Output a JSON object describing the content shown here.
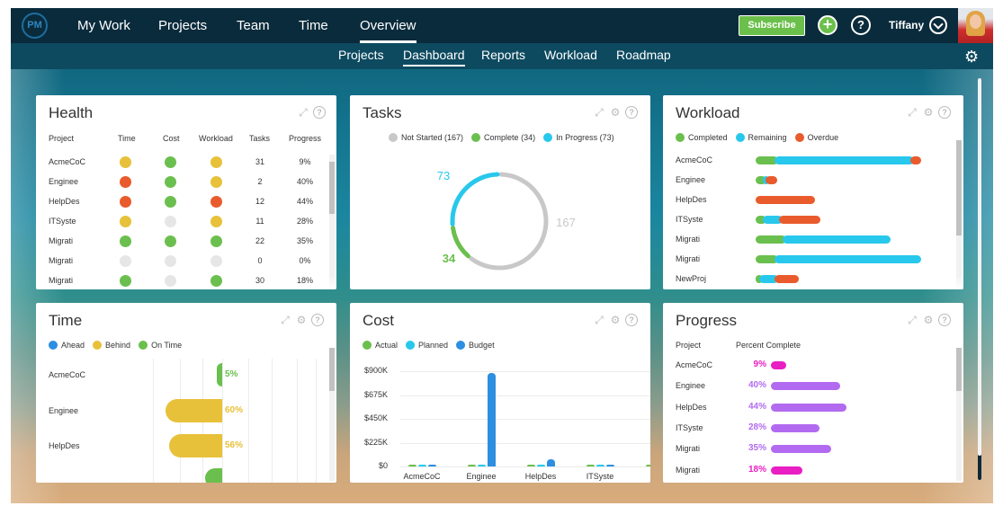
{
  "topnav": {
    "logo": "PM",
    "items": [
      "My Work",
      "Projects",
      "Team",
      "Time",
      "Overview"
    ],
    "active": "Overview",
    "subscribe": "Subscribe",
    "user": "Tiffany"
  },
  "subnav": {
    "items": [
      "Projects",
      "Dashboard",
      "Reports",
      "Workload",
      "Roadmap"
    ],
    "active": "Dashboard"
  },
  "colors": {
    "green": "#6bbf4e",
    "yellow": "#e8c13a",
    "red": "#e95b2c",
    "gray": "#e6e6e6",
    "blue": "#2d8fe0",
    "cyan": "#28c8ec",
    "purple": "#b26bf0",
    "magenta": "#e91ec3"
  },
  "health": {
    "title": "Health",
    "columns": [
      "Project",
      "Time",
      "Cost",
      "Workload",
      "Tasks",
      "Progress"
    ],
    "rows": [
      {
        "project": "AcmeCoC",
        "time": "yellow",
        "cost": "green",
        "workload": "yellow",
        "tasks": "31",
        "progress": "9%"
      },
      {
        "project": "Enginee",
        "time": "red",
        "cost": "green",
        "workload": "yellow",
        "tasks": "2",
        "progress": "40%"
      },
      {
        "project": "HelpDes",
        "time": "red",
        "cost": "green",
        "workload": "red",
        "tasks": "12",
        "progress": "44%"
      },
      {
        "project": "ITSyste",
        "time": "yellow",
        "cost": "gray",
        "workload": "yellow",
        "tasks": "11",
        "progress": "28%"
      },
      {
        "project": "Migrati",
        "time": "green",
        "cost": "green",
        "workload": "green",
        "tasks": "22",
        "progress": "35%"
      },
      {
        "project": "Migrati",
        "time": "gray",
        "cost": "gray",
        "workload": "gray",
        "tasks": "0",
        "progress": "0%"
      },
      {
        "project": "Migrati",
        "time": "green",
        "cost": "gray",
        "workload": "green",
        "tasks": "30",
        "progress": "18%"
      }
    ]
  },
  "tasks": {
    "title": "Tasks",
    "legend": [
      {
        "label": "Not Started (167)",
        "color": "#c8c8c8"
      },
      {
        "label": "Complete (34)",
        "color": "#6bbf4e"
      },
      {
        "label": "In Progress (73)",
        "color": "#28c8ec"
      }
    ],
    "values": {
      "not_started": 167,
      "complete": 34,
      "in_progress": 73
    },
    "labels": {
      "in_progress": "73",
      "not_started": "167",
      "complete": "34"
    }
  },
  "workload": {
    "title": "Workload",
    "legend": [
      {
        "label": "Completed",
        "color": "#6bbf4e"
      },
      {
        "label": "Remaining",
        "color": "#28c8ec"
      },
      {
        "label": "Overdue",
        "color": "#e95b2c"
      }
    ],
    "rows": [
      {
        "project": "AcmeCoC",
        "completed": 20,
        "remaining": 146,
        "overdue": 8
      },
      {
        "project": "Enginee",
        "completed": 8,
        "remaining": 3,
        "overdue": 8
      },
      {
        "project": "HelpDes",
        "completed": 0,
        "remaining": 0,
        "overdue": 60
      },
      {
        "project": "ITSyste",
        "completed": 8,
        "remaining": 17,
        "overdue": 41
      },
      {
        "project": "Migrati",
        "completed": 29,
        "remaining": 112,
        "overdue": 0
      },
      {
        "project": "Migrati",
        "completed": 20,
        "remaining": 154,
        "overdue": 0
      },
      {
        "project": "NewProj",
        "completed": 4,
        "remaining": 16,
        "overdue": 23
      }
    ]
  },
  "time": {
    "title": "Time",
    "legend": [
      {
        "label": "Ahead",
        "color": "#2d8fe0"
      },
      {
        "label": "Behind",
        "color": "#e8c13a"
      },
      {
        "label": "On Time",
        "color": "#6bbf4e"
      }
    ],
    "rows": [
      {
        "project": "AcmeCoC",
        "label": "5%",
        "status": "ontime",
        "value": 5
      },
      {
        "project": "Enginee",
        "label": "60%",
        "status": "behind",
        "value": 60
      },
      {
        "project": "HelpDes",
        "label": "56%",
        "status": "behind",
        "value": 56
      },
      {
        "project": "",
        "label": "",
        "status": "ontime",
        "value": 18
      }
    ]
  },
  "cost": {
    "title": "Cost",
    "legend": [
      {
        "label": "Actual",
        "color": "#6bbf4e"
      },
      {
        "label": "Planned",
        "color": "#28c8ec"
      },
      {
        "label": "Budget",
        "color": "#2d8fe0"
      }
    ],
    "yticks": [
      "$900K",
      "$675K",
      "$450K",
      "$225K",
      "$0"
    ],
    "ymax": 900000,
    "categories": [
      "AcmeCoC",
      "Enginee",
      "HelpDes",
      "ITSyste",
      "Mi"
    ],
    "series": [
      {
        "name": "Actual",
        "values": [
          2000,
          1000,
          2000,
          3000,
          4000
        ]
      },
      {
        "name": "Planned",
        "values": [
          4000,
          2000,
          10000,
          8000,
          1000
        ]
      },
      {
        "name": "Budget",
        "values": [
          3000,
          880000,
          70000,
          2000,
          1000
        ]
      }
    ]
  },
  "progress": {
    "title": "Progress",
    "columns": [
      "Project",
      "Percent Complete"
    ],
    "rows": [
      {
        "project": "AcmeCoC",
        "label": "9%",
        "value": 9,
        "color": "#e91ec3"
      },
      {
        "project": "Enginee",
        "label": "40%",
        "value": 40,
        "color": "#b26bf0"
      },
      {
        "project": "HelpDes",
        "label": "44%",
        "value": 44,
        "color": "#b26bf0"
      },
      {
        "project": "ITSyste",
        "label": "28%",
        "value": 28,
        "color": "#b26bf0"
      },
      {
        "project": "Migrati",
        "label": "35%",
        "value": 35,
        "color": "#b26bf0"
      },
      {
        "project": "Migrati",
        "label": "18%",
        "value": 18,
        "color": "#e91ec3"
      }
    ]
  }
}
